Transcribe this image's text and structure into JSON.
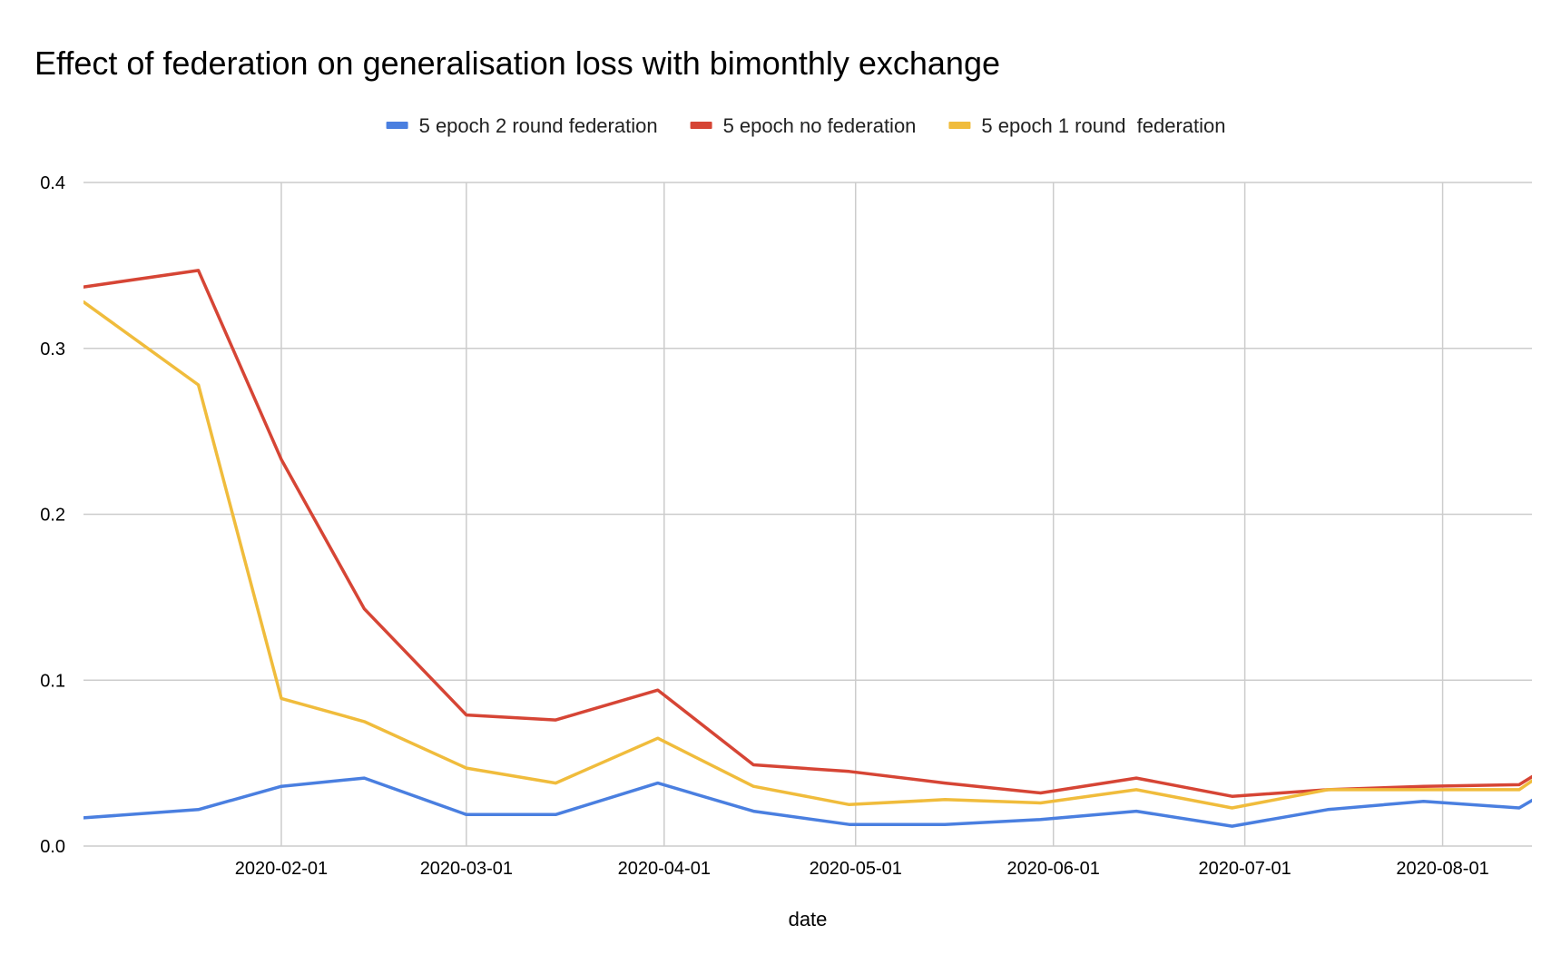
{
  "chart_data": {
    "type": "line",
    "title": "Effect of federation on generalisation loss with bimonthly exchange",
    "xlabel": "date",
    "ylabel": "",
    "x": [
      "2020-01-01",
      "2020-01-16",
      "2020-02-01",
      "2020-02-16",
      "2020-03-01",
      "2020-03-16",
      "2020-03-31",
      "2020-04-15",
      "2020-04-30",
      "2020-05-15",
      "2020-05-30",
      "2020-06-14",
      "2020-06-29",
      "2020-07-14",
      "2020-07-29",
      "2020-08-13",
      "2020-08-28"
    ],
    "xlim": [
      "2020-01-01",
      "2020-08-15"
    ],
    "x_tick_labels": [
      "2020-02-01",
      "2020-03-01",
      "2020-04-01",
      "2020-05-01",
      "2020-06-01",
      "2020-07-01",
      "2020-08-01"
    ],
    "ylim": [
      0,
      0.4
    ],
    "y_tick_labels": [
      "0.0",
      "0.1",
      "0.2",
      "0.3",
      "0.4"
    ],
    "grid": true,
    "legend_position": "top",
    "series": [
      {
        "name": "5 epoch 2 round federation",
        "color": "#4a7fe0",
        "points": [
          [
            "2020-01-01",
            0.017
          ],
          [
            "2020-01-19",
            0.022
          ],
          [
            "2020-02-01",
            0.036
          ],
          [
            "2020-02-14",
            0.041
          ],
          [
            "2020-03-01",
            0.019
          ],
          [
            "2020-03-15",
            0.019
          ],
          [
            "2020-03-31",
            0.038
          ],
          [
            "2020-04-15",
            0.021
          ],
          [
            "2020-04-30",
            0.013
          ],
          [
            "2020-05-15",
            0.013
          ],
          [
            "2020-05-30",
            0.016
          ],
          [
            "2020-06-14",
            0.021
          ],
          [
            "2020-06-29",
            0.012
          ],
          [
            "2020-07-14",
            0.022
          ],
          [
            "2020-07-29",
            0.027
          ],
          [
            "2020-08-13",
            0.023
          ],
          [
            "2020-08-21",
            0.041
          ]
        ]
      },
      {
        "name": "5 epoch no federation",
        "color": "#d64535",
        "points": [
          [
            "2020-01-01",
            0.337
          ],
          [
            "2020-01-19",
            0.347
          ],
          [
            "2020-02-01",
            0.233
          ],
          [
            "2020-02-14",
            0.143
          ],
          [
            "2020-03-01",
            0.079
          ],
          [
            "2020-03-15",
            0.076
          ],
          [
            "2020-03-31",
            0.094
          ],
          [
            "2020-04-15",
            0.049
          ],
          [
            "2020-04-30",
            0.045
          ],
          [
            "2020-05-15",
            0.038
          ],
          [
            "2020-05-30",
            0.032
          ],
          [
            "2020-06-14",
            0.041
          ],
          [
            "2020-06-29",
            0.03
          ],
          [
            "2020-07-14",
            0.034
          ],
          [
            "2020-07-29",
            0.036
          ],
          [
            "2020-08-13",
            0.037
          ],
          [
            "2020-08-21",
            0.056
          ]
        ]
      },
      {
        "name": "5 epoch 1 round  federation",
        "color": "#f0bc3c",
        "points": [
          [
            "2020-01-01",
            0.328
          ],
          [
            "2020-01-19",
            0.278
          ],
          [
            "2020-02-01",
            0.089
          ],
          [
            "2020-02-14",
            0.075
          ],
          [
            "2020-03-01",
            0.047
          ],
          [
            "2020-03-15",
            0.038
          ],
          [
            "2020-03-31",
            0.065
          ],
          [
            "2020-04-15",
            0.036
          ],
          [
            "2020-04-30",
            0.025
          ],
          [
            "2020-05-15",
            0.028
          ],
          [
            "2020-05-30",
            0.026
          ],
          [
            "2020-06-14",
            0.034
          ],
          [
            "2020-06-29",
            0.023
          ],
          [
            "2020-07-14",
            0.034
          ],
          [
            "2020-07-29",
            0.034
          ],
          [
            "2020-08-13",
            0.034
          ],
          [
            "2020-08-21",
            0.055
          ]
        ]
      }
    ]
  }
}
